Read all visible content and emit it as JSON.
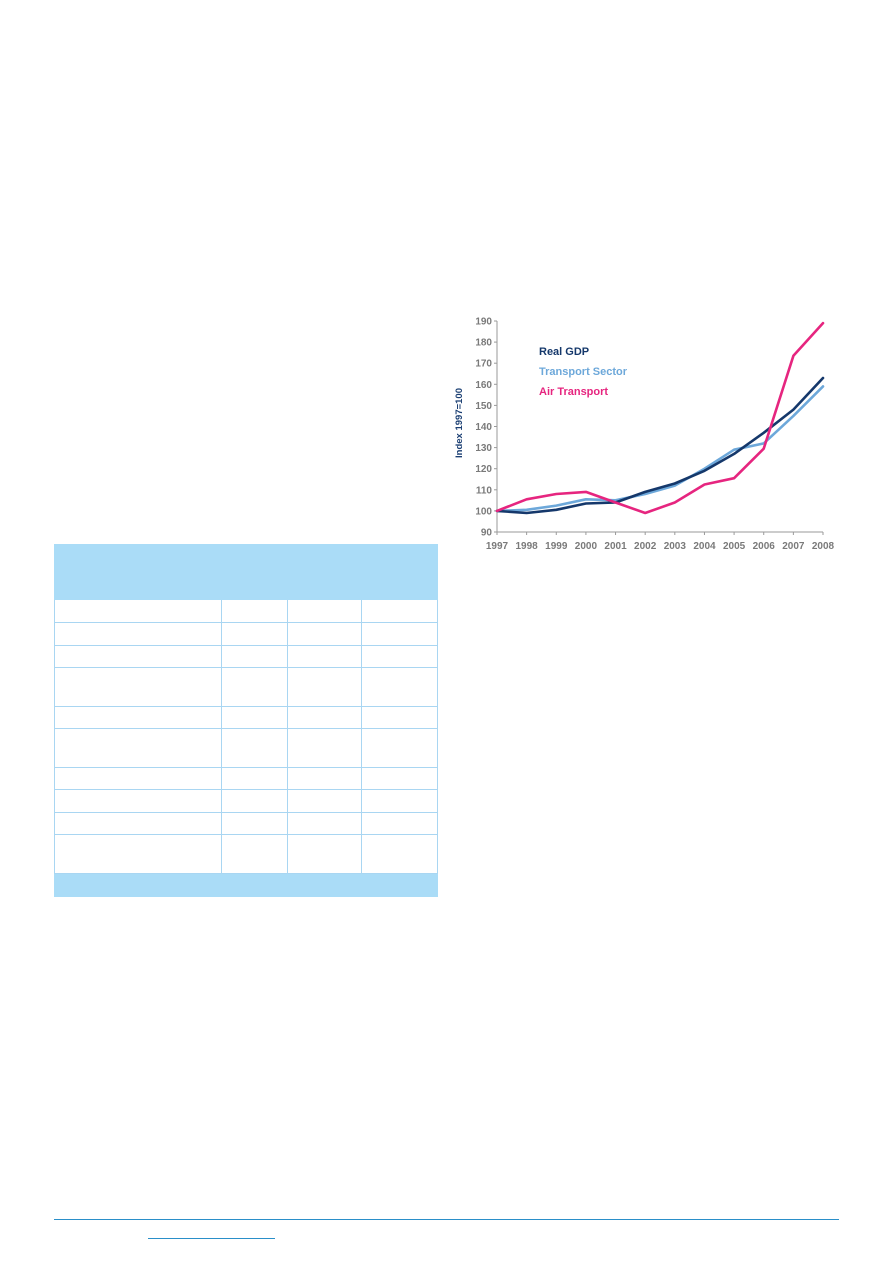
{
  "chart_data": {
    "type": "line",
    "title": "",
    "xlabel": "",
    "ylabel": "Index 1997=100",
    "x": [
      "1997",
      "1998",
      "1999",
      "2000",
      "2001",
      "2002",
      "2003",
      "2004",
      "2005",
      "2006",
      "2007",
      "2008"
    ],
    "ylim": [
      90,
      190
    ],
    "yticks": [
      90,
      100,
      110,
      120,
      130,
      140,
      150,
      160,
      170,
      180,
      190
    ],
    "grid": false,
    "legend_position": "top-left",
    "series": [
      {
        "name": "Real GDP",
        "color": "#15386b",
        "values": [
          100,
          99,
          100.5,
          103.5,
          104,
          109,
          113,
          119,
          127,
          137,
          148,
          163
        ]
      },
      {
        "name": "Transport Sector",
        "color": "#6da8da",
        "values": [
          100,
          100.5,
          102.5,
          105.5,
          105,
          108,
          112,
          120,
          129,
          132,
          145,
          159
        ]
      },
      {
        "name": "Air Transport",
        "color": "#e6257f",
        "values": [
          100,
          105.5,
          108,
          109,
          104,
          99,
          104,
          112.5,
          115.5,
          129.5,
          173.5,
          189
        ]
      }
    ]
  },
  "table": {
    "rows": 15
  }
}
